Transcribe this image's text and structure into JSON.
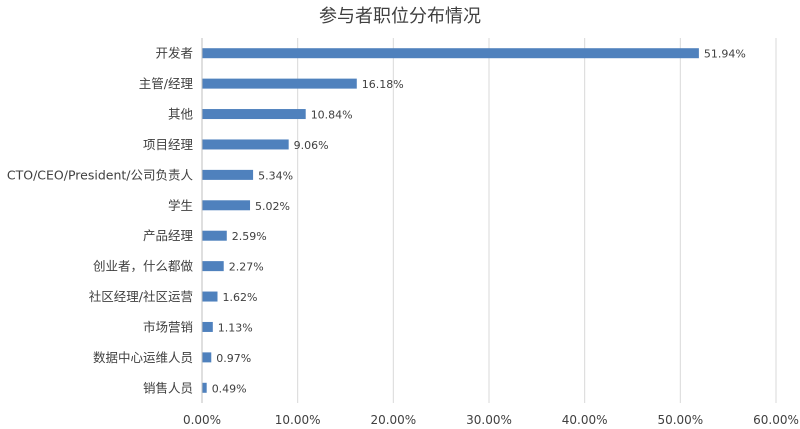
{
  "chart_data": {
    "type": "bar",
    "orientation": "horizontal",
    "title": "参与者职位分布情况",
    "categories": [
      "开发者",
      "主管/经理",
      "其他",
      "项目经理",
      "CTO/CEO/President/公司负责人",
      "学生",
      "产品经理",
      "创业者，什么都做",
      "社区经理/社区运营",
      "市场营销",
      "数据中心运维人员",
      "销售人员"
    ],
    "values": [
      51.94,
      16.18,
      10.84,
      9.06,
      5.34,
      5.02,
      2.59,
      2.27,
      1.62,
      1.13,
      0.97,
      0.49
    ],
    "value_labels": [
      "51.94%",
      "16.18%",
      "10.84%",
      "9.06%",
      "5.34%",
      "5.02%",
      "2.59%",
      "2.27%",
      "1.62%",
      "1.13%",
      "0.97%",
      "0.49%"
    ],
    "xlim": [
      0,
      60
    ],
    "xticks": [
      0,
      10,
      20,
      30,
      40,
      50,
      60
    ],
    "xtick_labels": [
      "0.00%",
      "10.00%",
      "20.00%",
      "30.00%",
      "40.00%",
      "50.00%",
      "60.00%"
    ],
    "grid": "vertical",
    "legend": "none",
    "bar_color": "#4f81bd"
  }
}
